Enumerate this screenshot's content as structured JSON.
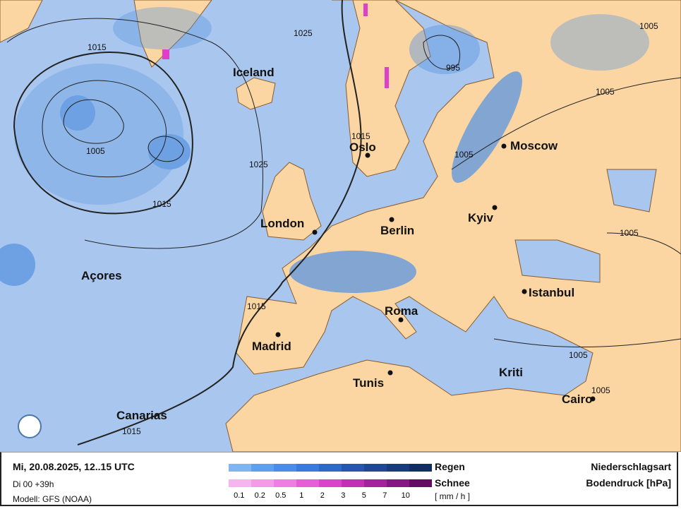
{
  "map": {
    "colors": {
      "ocean": "#a9c7ee",
      "land": "#fbd6a3",
      "rain": "#3f7fd6",
      "snow": "#e040c8",
      "isobar": "#222222"
    },
    "regions": [
      "Iceland",
      "Açores",
      "Canarias",
      "Kriti"
    ],
    "cities": [
      "Oslo",
      "Moscow",
      "Kyiv",
      "Berlin",
      "London",
      "Istanbul",
      "Roma",
      "Madrid",
      "Tunis",
      "Cairo"
    ],
    "isobars": [
      "1015",
      "1025",
      "995",
      "1005",
      "1005",
      "1015",
      "1005",
      "1025",
      "1005",
      "1015",
      "1005",
      "1015",
      "1005",
      "1005",
      "1015"
    ]
  },
  "legend": {
    "datetime": "Mi, 20.08.2025, 12..15 UTC",
    "run": "Di 00 +39h",
    "model": "Modell: GFS (NOAA)",
    "rain_label": "Regen",
    "snow_label": "Schnee",
    "unit": "[ mm / h ]",
    "ticks": [
      "0.1",
      "0.2",
      "0.5",
      "1",
      "2",
      "3",
      "5",
      "7",
      "10"
    ],
    "rain_colors": [
      "#7fb6f2",
      "#5fa0ee",
      "#4a8ce6",
      "#3a7ada",
      "#2f69c6",
      "#2657ad",
      "#1e4894",
      "#183b7c",
      "#112d62"
    ],
    "snow_colors": [
      "#f7b5ef",
      "#f59ae9",
      "#ef7de2",
      "#e65fd8",
      "#d944cb",
      "#c230b6",
      "#a5229d",
      "#861684",
      "#640c64"
    ],
    "title1": "Niederschlagsart",
    "title2": "Bodendruck [hPa]"
  }
}
